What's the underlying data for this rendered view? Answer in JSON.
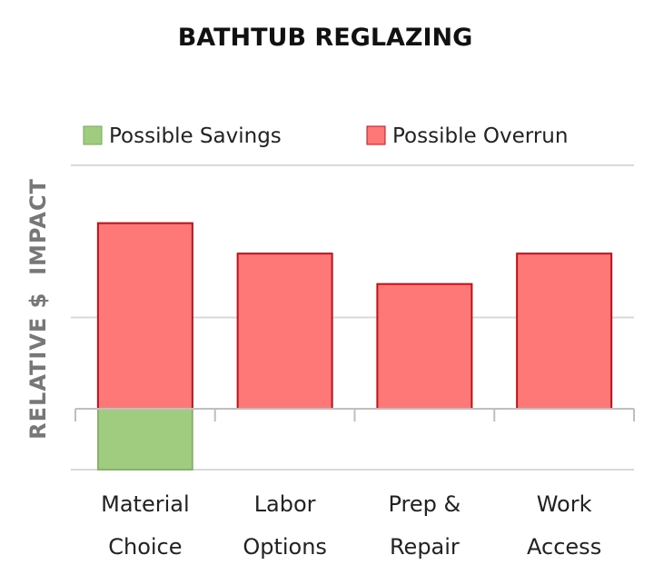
{
  "chart_data": {
    "type": "bar",
    "title": "BATHTUB REGLAZING",
    "xlabel": "",
    "ylabel": "RELATIVE $  IMPACT",
    "categories": [
      "Material Choice",
      "Labor Options",
      "Prep & Repair",
      "Work Access"
    ],
    "series": [
      {
        "name": "Possible Savings",
        "color": "#a0cc80",
        "values": [
          -1,
          0,
          0,
          0
        ]
      },
      {
        "name": "Possible Overrun",
        "color": "#ff7878",
        "edge_color": "#c0101a",
        "values": [
          3.05,
          2.55,
          2.05,
          2.55
        ]
      }
    ],
    "ylim": [
      -1,
      4
    ],
    "gridlines": [
      -1,
      1.5,
      4
    ],
    "grid": true,
    "legend_placement": "top",
    "y_tick_labels_shown": false
  }
}
